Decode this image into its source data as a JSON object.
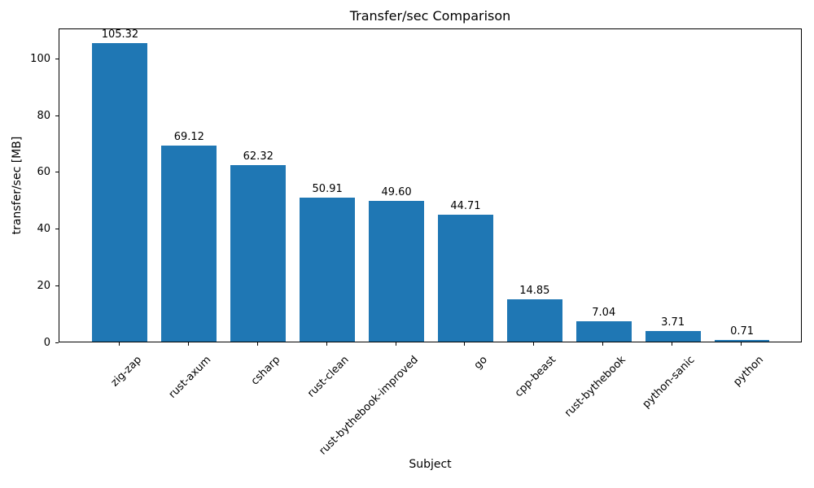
{
  "chart_data": {
    "type": "bar",
    "title": "Transfer/sec Comparison",
    "xlabel": "Subject",
    "ylabel": "transfer/sec [MB]",
    "categories": [
      "zig-zap",
      "rust-axum",
      "csharp",
      "rust-clean",
      "rust-bythebook-improved",
      "go",
      "cpp-beast",
      "rust-bythebook",
      "python-sanic",
      "python"
    ],
    "values": [
      105.32,
      69.12,
      62.32,
      50.91,
      49.6,
      44.71,
      14.85,
      7.04,
      3.71,
      0.71
    ],
    "value_labels": [
      "105.32",
      "69.12",
      "62.32",
      "50.91",
      "49.60",
      "44.71",
      "14.85",
      "7.04",
      "3.71",
      "0.71"
    ],
    "yticks": [
      0,
      20,
      40,
      60,
      80,
      100
    ],
    "ylim": [
      0,
      110.8
    ],
    "x_tick_rotation_deg": 45,
    "grid": false,
    "bar_color": "#1f77b4",
    "text_color": "#000000",
    "axis_color": "#000000",
    "background_color": "#ffffff"
  }
}
